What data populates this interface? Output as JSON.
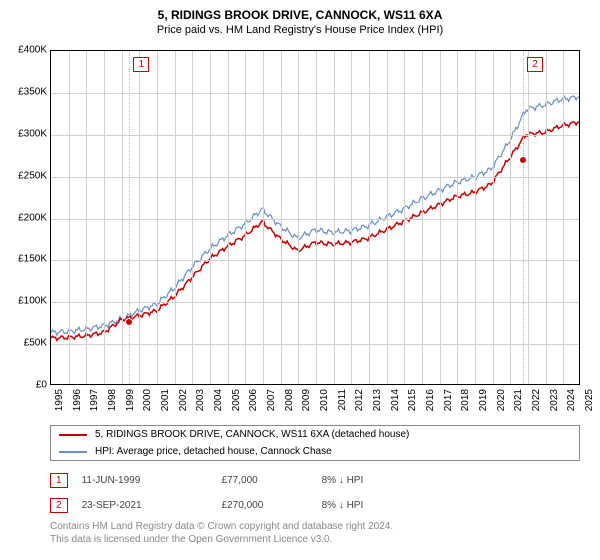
{
  "title": "5, RIDINGS BROOK DRIVE, CANNOCK, WS11 6XA",
  "subtitle": "Price paid vs. HM Land Registry's House Price Index (HPI)",
  "chart": {
    "type": "line",
    "background_color": "#ffffff",
    "grid_color": "#d0d0d0",
    "axis_color": "#000000",
    "label_fontsize": 10,
    "ylim": [
      0,
      400000
    ],
    "ytick_step": 50000,
    "yticks": [
      "£0",
      "£50K",
      "£100K",
      "£150K",
      "£200K",
      "£250K",
      "£300K",
      "£350K",
      "£400K"
    ],
    "xlim": [
      1995,
      2025
    ],
    "xticks": [
      1995,
      1996,
      1997,
      1998,
      1999,
      2000,
      2001,
      2002,
      2003,
      2004,
      2005,
      2006,
      2007,
      2008,
      2009,
      2010,
      2011,
      2012,
      2013,
      2014,
      2015,
      2016,
      2017,
      2018,
      2019,
      2020,
      2021,
      2022,
      2023,
      2024,
      2025
    ],
    "series": [
      {
        "name": "price_paid",
        "label": "5, RIDINGS BROOK DRIVE, CANNOCK, WS11 6XA (detached house)",
        "color": "#cc0000",
        "width": 1.5,
        "data": [
          [
            1995,
            55000
          ],
          [
            1996,
            56000
          ],
          [
            1997,
            58000
          ],
          [
            1998,
            62000
          ],
          [
            1999,
            77000
          ],
          [
            2000,
            82000
          ],
          [
            2001,
            88000
          ],
          [
            2002,
            105000
          ],
          [
            2003,
            128000
          ],
          [
            2004,
            150000
          ],
          [
            2005,
            165000
          ],
          [
            2006,
            178000
          ],
          [
            2007,
            195000
          ],
          [
            2008,
            175000
          ],
          [
            2009,
            160000
          ],
          [
            2010,
            170000
          ],
          [
            2011,
            168000
          ],
          [
            2012,
            170000
          ],
          [
            2013,
            175000
          ],
          [
            2014,
            185000
          ],
          [
            2015,
            195000
          ],
          [
            2016,
            205000
          ],
          [
            2017,
            215000
          ],
          [
            2018,
            225000
          ],
          [
            2019,
            230000
          ],
          [
            2020,
            240000
          ],
          [
            2021,
            270000
          ],
          [
            2022,
            300000
          ],
          [
            2023,
            302000
          ],
          [
            2024,
            310000
          ],
          [
            2025,
            315000
          ]
        ]
      },
      {
        "name": "hpi",
        "label": "HPI: Average price, detached house, Cannock Chase",
        "color": "#6a8ec8",
        "width": 1.2,
        "data": [
          [
            1995,
            62000
          ],
          [
            1996,
            63000
          ],
          [
            1997,
            66000
          ],
          [
            1998,
            70000
          ],
          [
            1999,
            78000
          ],
          [
            2000,
            88000
          ],
          [
            2001,
            96000
          ],
          [
            2002,
            115000
          ],
          [
            2003,
            140000
          ],
          [
            2004,
            162000
          ],
          [
            2005,
            178000
          ],
          [
            2006,
            192000
          ],
          [
            2007,
            210000
          ],
          [
            2008,
            190000
          ],
          [
            2009,
            175000
          ],
          [
            2010,
            185000
          ],
          [
            2011,
            182000
          ],
          [
            2012,
            184000
          ],
          [
            2013,
            190000
          ],
          [
            2014,
            200000
          ],
          [
            2015,
            210000
          ],
          [
            2016,
            222000
          ],
          [
            2017,
            232000
          ],
          [
            2018,
            242000
          ],
          [
            2019,
            248000
          ],
          [
            2020,
            258000
          ],
          [
            2021,
            290000
          ],
          [
            2022,
            330000
          ],
          [
            2023,
            335000
          ],
          [
            2024,
            342000
          ],
          [
            2025,
            345000
          ]
        ]
      }
    ],
    "events": [
      {
        "n": "1",
        "year": 1999.44,
        "price": 77000
      },
      {
        "n": "2",
        "year": 2021.73,
        "price": 270000
      }
    ]
  },
  "legend": {
    "items": [
      {
        "color": "#cc0000",
        "label": "5, RIDINGS BROOK DRIVE, CANNOCK, WS11 6XA (detached house)"
      },
      {
        "color": "#6a8ec8",
        "label": "HPI: Average price, detached house, Cannock Chase"
      }
    ]
  },
  "events_table": [
    {
      "n": "1",
      "date": "11-JUN-1999",
      "price": "£77,000",
      "diff": "8% ↓ HPI"
    },
    {
      "n": "2",
      "date": "23-SEP-2021",
      "price": "£270,000",
      "diff": "8% ↓ HPI"
    }
  ],
  "footer": {
    "line1": "Contains HM Land Registry data © Crown copyright and database right 2024.",
    "line2": "This data is licensed under the Open Government Licence v3.0."
  }
}
